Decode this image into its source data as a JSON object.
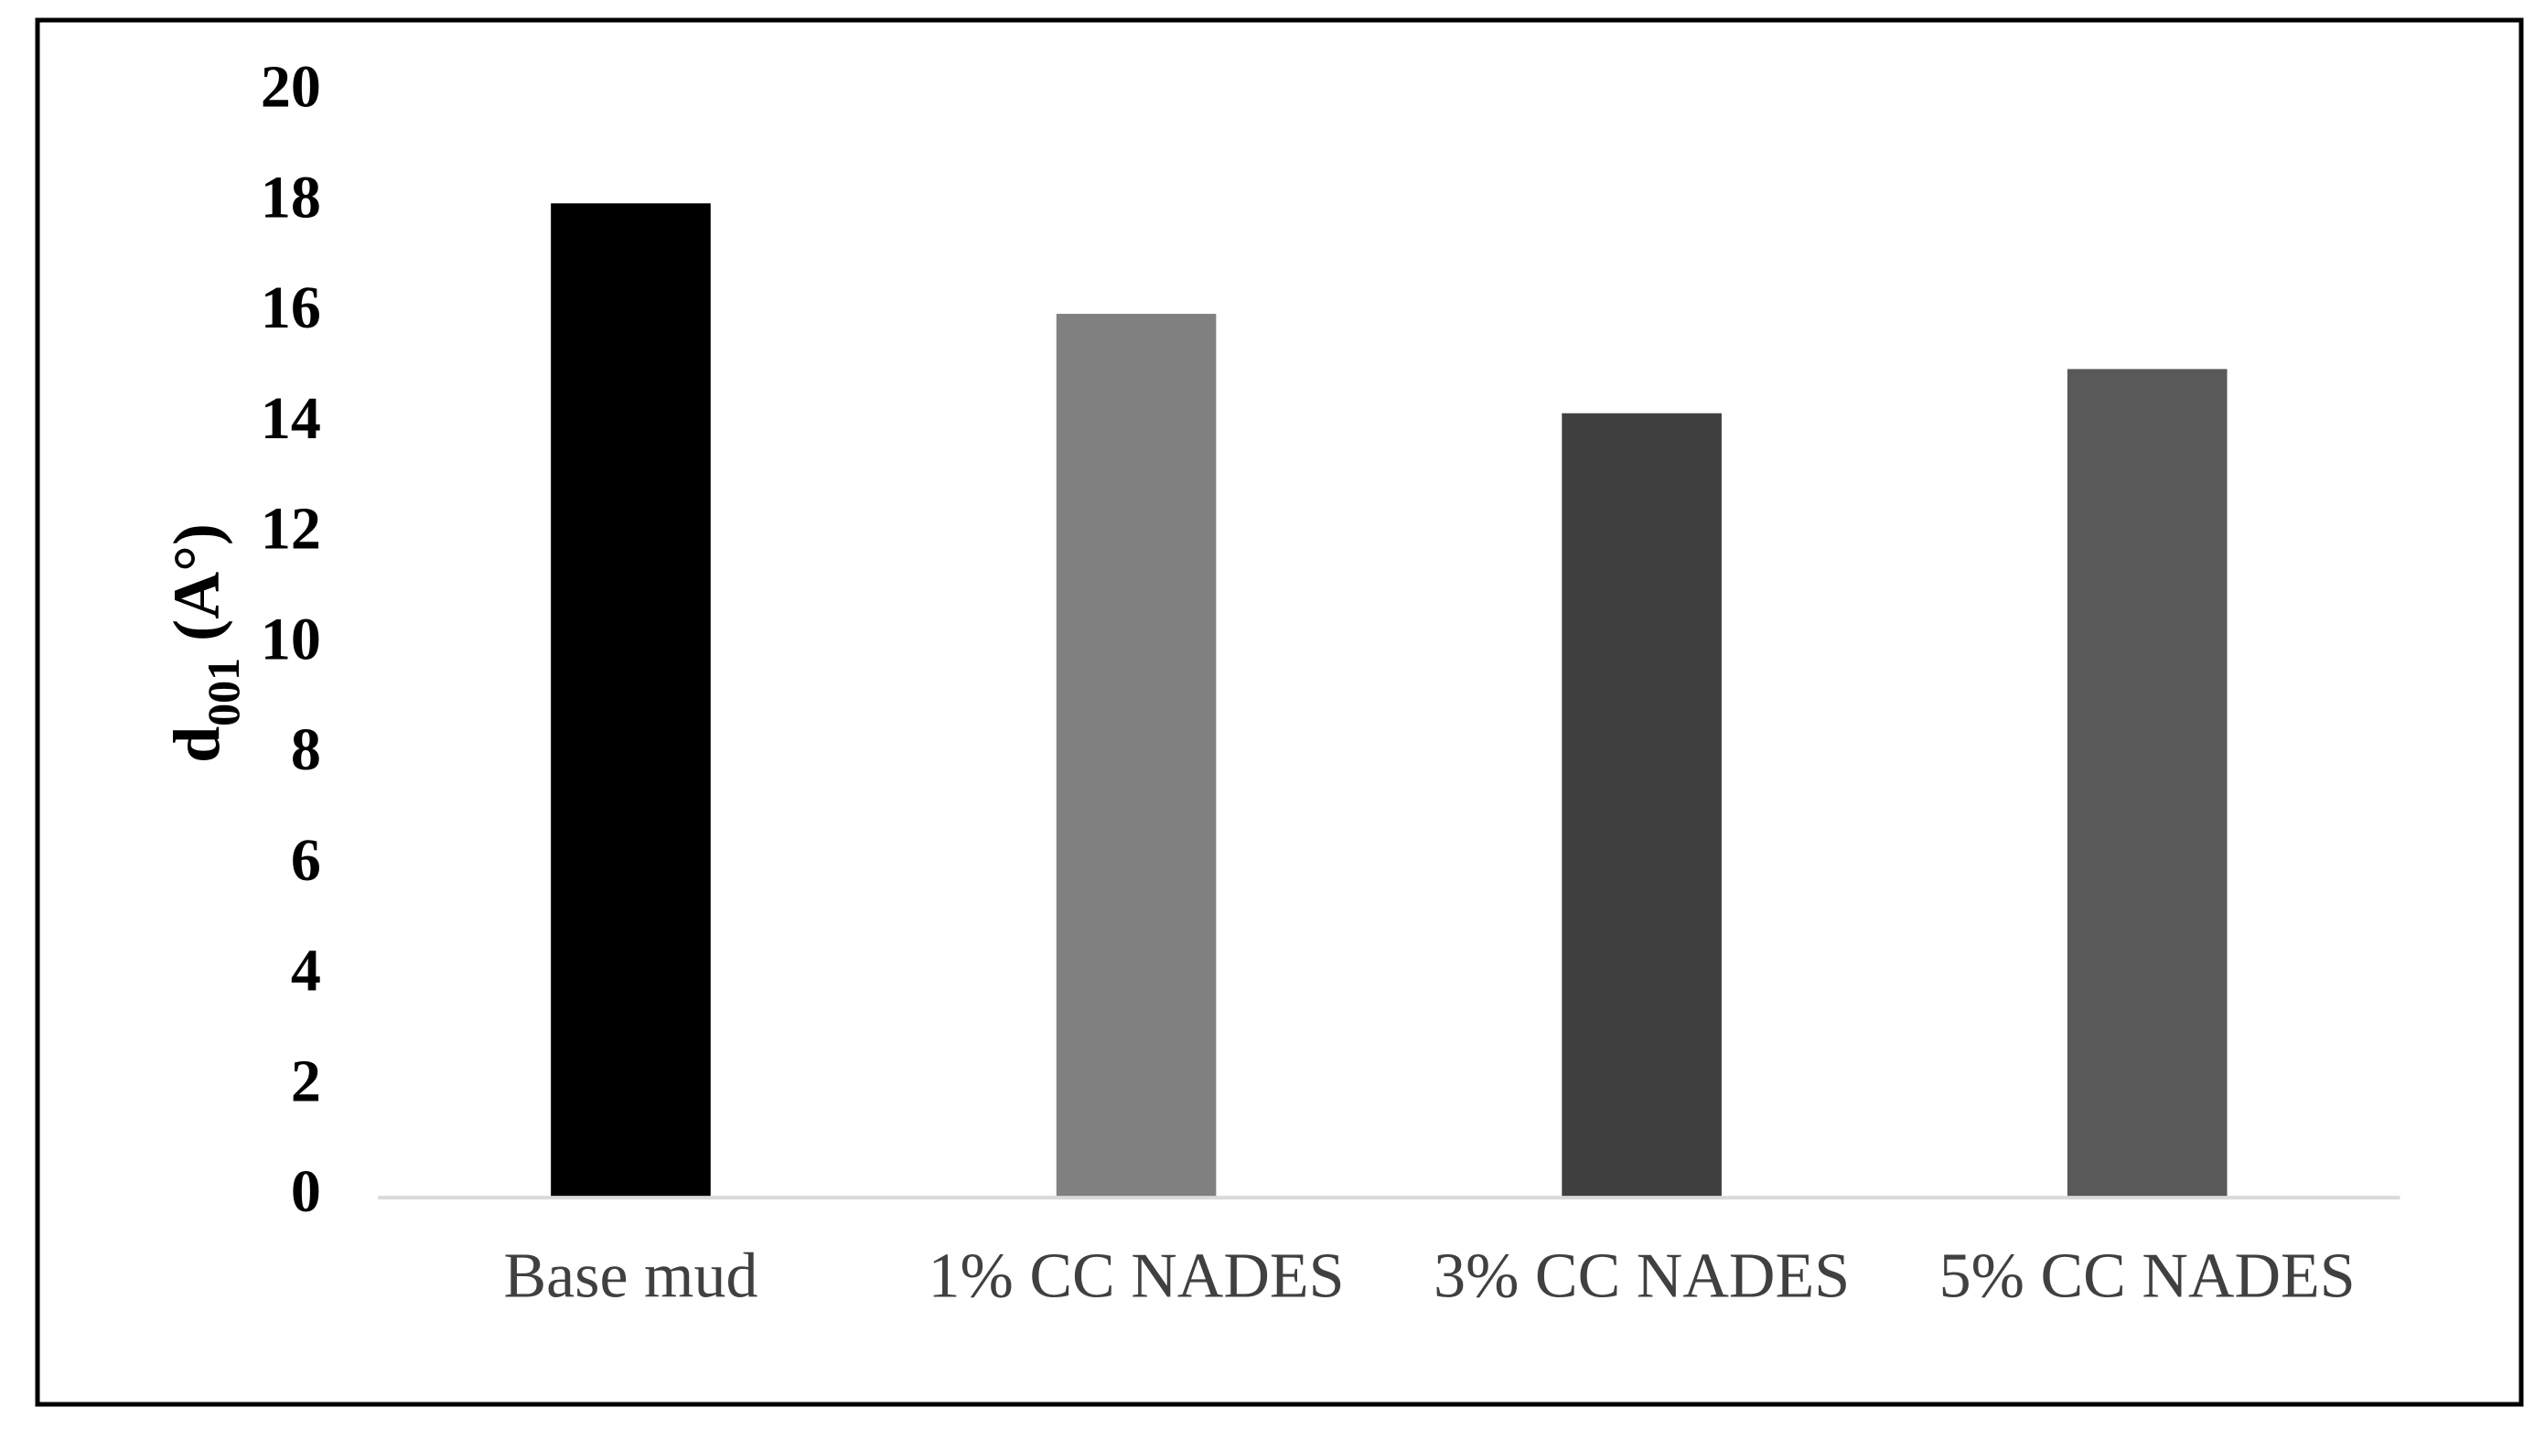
{
  "chart_data": {
    "type": "bar",
    "y_label": [
      "d",
      "001",
      " (A°)"
    ],
    "categories": [
      "Base mud",
      "1% CC NADES",
      "3% CC NADES",
      "5% CC NADES"
    ],
    "values": [
      18,
      16,
      14.2,
      15
    ],
    "colors": [
      "#000000",
      "#808080",
      "#404040",
      "#595959"
    ],
    "ylim": [
      0,
      20
    ],
    "yticks": [
      0,
      2,
      4,
      6,
      8,
      10,
      12,
      14,
      16,
      18,
      20
    ],
    "grid": false
  }
}
